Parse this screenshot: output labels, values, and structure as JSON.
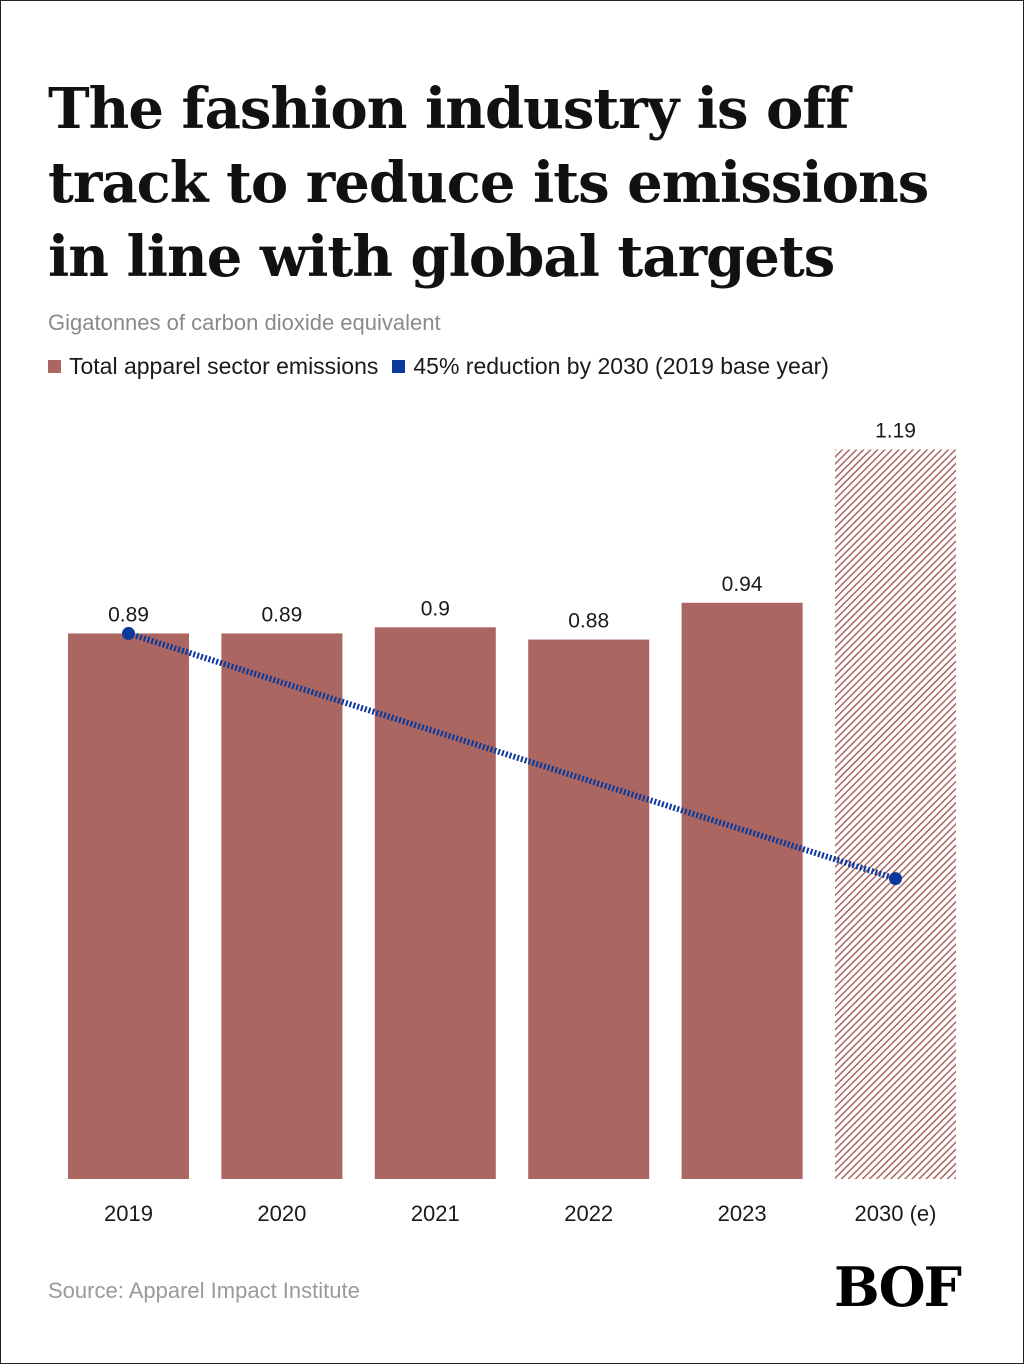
{
  "title": "The fashion industry is off track to reduce its emissions in line with global targets",
  "subtitle": "Gigatonnes of carbon dioxide equivalent",
  "legend": {
    "bars_label": "Total apparel sector emissions",
    "line_label": "45% reduction by 2030 (2019 base year)"
  },
  "source": "Source: Apparel Impact Institute",
  "logo": "BOF",
  "colors": {
    "bar": "#ac6661",
    "line": "#0b3a9c",
    "background": "#ffffff"
  },
  "chart_data": {
    "type": "bar",
    "categories": [
      "2019",
      "2020",
      "2021",
      "2022",
      "2023",
      "2030 (e)"
    ],
    "series": [
      {
        "name": "Total apparel sector emissions",
        "values": [
          0.89,
          0.89,
          0.9,
          0.88,
          0.94,
          1.19
        ],
        "labels": [
          "0.89",
          "0.89",
          "0.9",
          "0.88",
          "0.94",
          "1.19"
        ],
        "estimated": [
          false,
          false,
          false,
          false,
          false,
          true
        ]
      }
    ],
    "overlay_line": {
      "name": "45% reduction by 2030 (2019 base year)",
      "style": "dotted",
      "points": [
        {
          "x": "2019",
          "y": 0.89
        },
        {
          "x": "2030 (e)",
          "y": 0.49
        }
      ]
    },
    "ylim": [
      0,
      1.19
    ],
    "grid": false,
    "legend_position": "top-left"
  }
}
